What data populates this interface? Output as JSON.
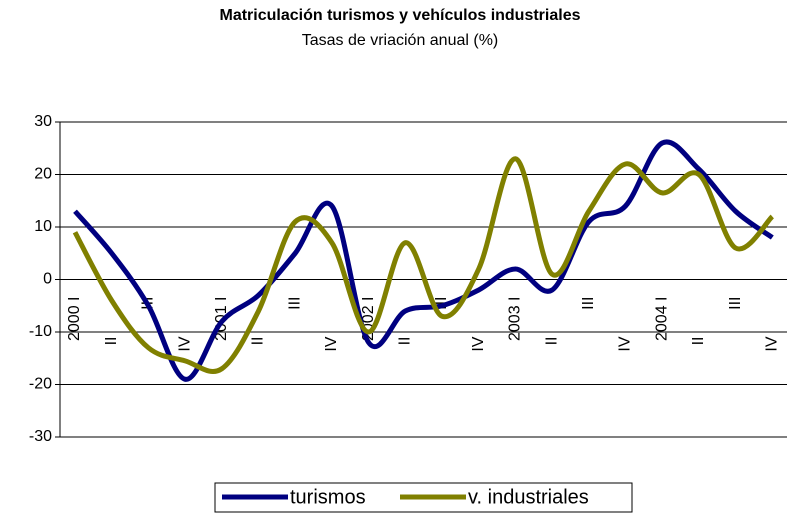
{
  "chart_data": {
    "type": "line",
    "title": "Matriculación turismos y vehículos industriales",
    "subtitle": "Tasas de vriación anual (%)",
    "categories": [
      "2000 I",
      "II",
      "III",
      "IV",
      "2001 I",
      "II",
      "III",
      "IV",
      "2002 I",
      "II",
      "III",
      "IV",
      "2003 I",
      "II",
      "III",
      "IV",
      "2004 I",
      "II",
      "III",
      "IV"
    ],
    "series": [
      {
        "name": "turismos",
        "color": "#000080",
        "values": [
          13,
          5,
          -5,
          -19,
          -8,
          -3,
          5,
          14,
          -12,
          -6,
          -5,
          -2,
          2,
          -2,
          11,
          14,
          26,
          21,
          13,
          8
        ]
      },
      {
        "name": "v. industriales",
        "color": "#808000",
        "values": [
          9,
          -4,
          -13,
          -15.5,
          -17,
          -6,
          11,
          7,
          -10,
          7,
          -7,
          2,
          23,
          1,
          13,
          22,
          16.5,
          20,
          6,
          12
        ]
      }
    ],
    "ylim": [
      -30,
      30
    ],
    "yticks": [
      -30,
      -20,
      -10,
      0,
      10,
      20,
      30
    ],
    "grid": true,
    "legend": "bottom"
  }
}
